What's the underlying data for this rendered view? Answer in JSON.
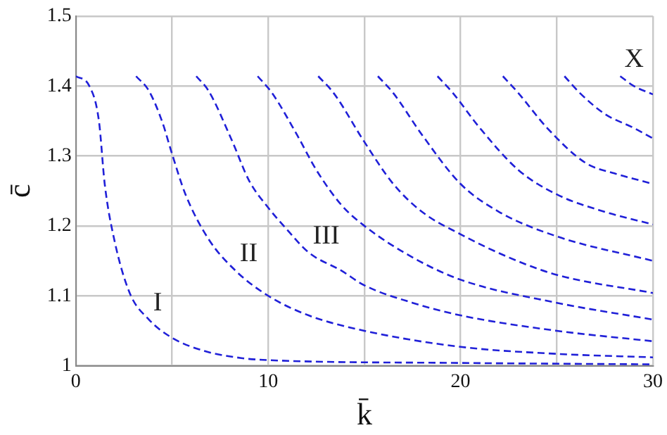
{
  "chart_data": {
    "type": "line",
    "xlabel": "k̄",
    "ylabel": "c̄",
    "xlim": [
      0,
      30
    ],
    "ylim": [
      1,
      1.5
    ],
    "xticks": [
      0,
      {
        "value": 5,
        "label": null
      },
      10,
      {
        "value": 15,
        "label": null
      },
      20,
      {
        "value": 25,
        "label": null
      },
      30
    ],
    "yticks": [
      1,
      1.1,
      1.2,
      1.3,
      1.4,
      1.5
    ],
    "grid": true,
    "legend": false,
    "marker": "none",
    "line_style": "dashed",
    "annotations": [
      {
        "text": "I",
        "x": 3.8,
        "y": 1.066
      },
      {
        "text": "II",
        "x": 8.3,
        "y": 1.136
      },
      {
        "text": "III",
        "x": 12.1,
        "y": 1.162
      },
      {
        "text": "X",
        "x": 28.3,
        "y": 1.414
      }
    ],
    "series": [
      {
        "color": "#2020d8",
        "x": [
          0,
          0.7,
          1.2,
          1.5,
          2,
          2.8,
          3.8,
          5,
          6.7,
          8.6,
          10,
          20,
          30
        ],
        "values": [
          1.414,
          1.4,
          1.35,
          1.26,
          1.18,
          1.104,
          1.066,
          1.04,
          1.021,
          1.011,
          1.008,
          1.004,
          1.002
        ]
      },
      {
        "color": "#2020d8",
        "x": [
          3.13,
          3.8,
          4.5,
          5,
          5.7,
          6.9,
          8.3,
          10,
          12.1,
          15,
          20,
          25,
          30
        ],
        "values": [
          1.414,
          1.393,
          1.348,
          1.303,
          1.245,
          1.181,
          1.136,
          1.1,
          1.072,
          1.05,
          1.027,
          1.017,
          1.012
        ]
      },
      {
        "color": "#2020d8",
        "x": [
          6.26,
          6.9,
          8.1,
          9,
          10,
          11,
          12.1,
          13.8,
          15,
          17.5,
          20,
          25,
          30
        ],
        "values": [
          1.414,
          1.393,
          1.323,
          1.265,
          1.226,
          1.194,
          1.162,
          1.136,
          1.115,
          1.09,
          1.072,
          1.05,
          1.035
        ]
      },
      {
        "color": "#2020d8",
        "x": [
          9.45,
          10.2,
          11.5,
          12.5,
          13.8,
          15,
          17.5,
          20,
          25,
          30
        ],
        "values": [
          1.414,
          1.39,
          1.33,
          1.28,
          1.23,
          1.2,
          1.155,
          1.123,
          1.09,
          1.066
        ]
      },
      {
        "color": "#2020d8",
        "x": [
          12.6,
          13.4,
          15,
          16.5,
          18,
          20,
          22.5,
          25,
          30
        ],
        "values": [
          1.414,
          1.39,
          1.32,
          1.26,
          1.22,
          1.188,
          1.155,
          1.13,
          1.104
        ]
      },
      {
        "color": "#2020d8",
        "x": [
          15.7,
          16.5,
          18,
          20,
          22,
          25,
          30
        ],
        "values": [
          1.414,
          1.39,
          1.33,
          1.26,
          1.22,
          1.185,
          1.15
        ]
      },
      {
        "color": "#2020d8",
        "x": [
          18.8,
          19.6,
          21,
          23,
          25,
          27.5,
          30
        ],
        "values": [
          1.414,
          1.39,
          1.34,
          1.28,
          1.245,
          1.22,
          1.202
        ]
      },
      {
        "color": "#2020d8",
        "x": [
          22.2,
          23,
          24.5,
          26.5,
          28,
          30
        ],
        "values": [
          1.414,
          1.39,
          1.34,
          1.29,
          1.275,
          1.26
        ]
      },
      {
        "color": "#2020d8",
        "x": [
          25.4,
          26.2,
          27.5,
          29,
          30
        ],
        "values": [
          1.414,
          1.39,
          1.36,
          1.34,
          1.325
        ]
      },
      {
        "color": "#2020d8",
        "x": [
          28.3,
          29,
          30
        ],
        "values": [
          1.414,
          1.4,
          1.388
        ]
      }
    ]
  }
}
